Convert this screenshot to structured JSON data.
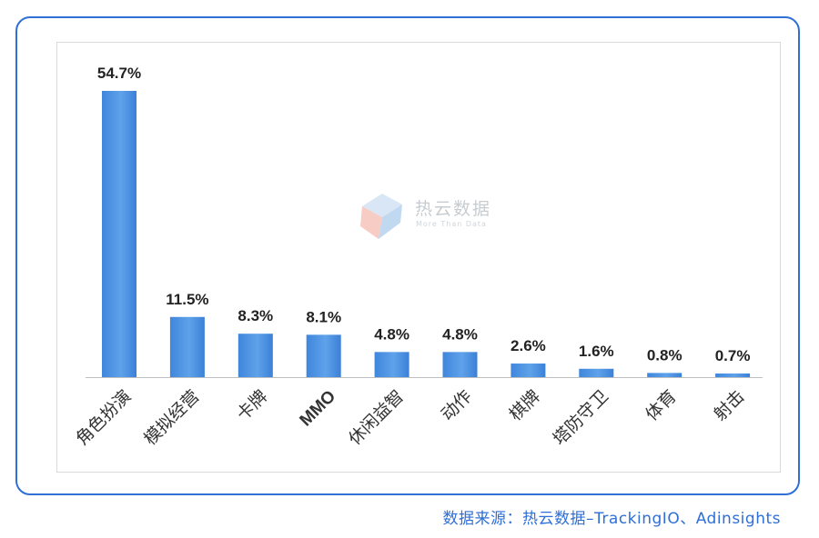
{
  "chart_data": {
    "type": "bar",
    "categories": [
      "角色扮演",
      "模拟经营",
      "卡牌",
      "MMO",
      "休闲益智",
      "动作",
      "棋牌",
      "塔防守卫",
      "体育",
      "射击"
    ],
    "values": [
      54.7,
      11.5,
      8.3,
      8.1,
      4.8,
      4.8,
      2.6,
      1.6,
      0.8,
      0.7
    ],
    "data_labels": [
      "54.7%",
      "11.5%",
      "8.3%",
      "8.1%",
      "4.8%",
      "4.8%",
      "2.6%",
      "1.6%",
      "0.8%",
      "0.7%"
    ],
    "title": "",
    "xlabel": "",
    "ylabel": "",
    "ylim": [
      0,
      56
    ],
    "grid": false,
    "colors": {
      "bar": "#4a90e2",
      "bar_light": "#7bb3ee",
      "frame": "#2f6fd6",
      "axis": "#bfbfbf"
    }
  },
  "watermark": {
    "title": "热云数据",
    "subtitle": "More Than Data"
  },
  "source": "数据来源：热云数据–TrackingIO、Adinsights"
}
